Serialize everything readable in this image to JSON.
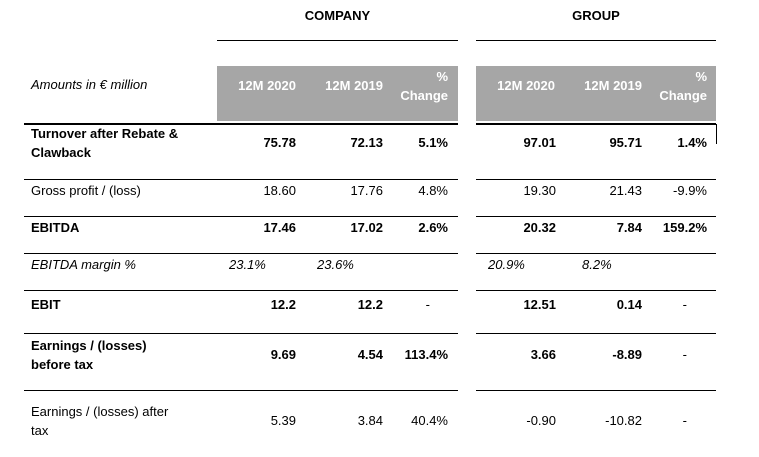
{
  "groups": [
    {
      "title": "COMPANY",
      "cols": [
        "12M 2020",
        "12M 2019",
        "%",
        "Change"
      ]
    },
    {
      "title": "GROUP",
      "cols": [
        "12M 2020",
        "12M 2019",
        "%",
        "Change"
      ]
    }
  ],
  "amounts_label": "Amounts in € million",
  "rows": [
    {
      "label": [
        "Turnover after Rebate &",
        "Clawback"
      ],
      "style": "bold",
      "company": [
        "75.78",
        "72.13",
        "5.1%"
      ],
      "group": [
        "97.01",
        "95.71",
        "1.4%"
      ]
    },
    {
      "label": [
        "Gross profit / (loss)"
      ],
      "style": "normal",
      "company": [
        "18.60",
        "17.76",
        "4.8%"
      ],
      "group": [
        "19.30",
        "21.43",
        "-9.9%"
      ]
    },
    {
      "label": [
        "EBITDA"
      ],
      "style": "bold",
      "company": [
        "17.46",
        "17.02",
        "2.6%"
      ],
      "group": [
        "20.32",
        "7.84",
        "159.2%"
      ]
    },
    {
      "label": [
        "EBITDA margin %"
      ],
      "style": "italic",
      "company": [
        "23.1%",
        "23.6%",
        ""
      ],
      "group": [
        "20.9%",
        "8.2%",
        ""
      ]
    },
    {
      "label": [
        "EBIT"
      ],
      "style": "bold",
      "company": [
        "12.2",
        "12.2",
        "-"
      ],
      "group": [
        "12.51",
        "0.14",
        "-"
      ]
    },
    {
      "label": [
        "Earnings / (losses)",
        "before tax"
      ],
      "style": "bold",
      "company": [
        "9.69",
        "4.54",
        "113.4%"
      ],
      "group": [
        "3.66",
        "-8.89",
        "-"
      ]
    },
    {
      "label": [
        "Earnings / (losses) after",
        "tax"
      ],
      "style": "normal",
      "company": [
        "5.39",
        "3.84",
        "40.4%"
      ],
      "group": [
        "-0.90",
        "-10.82",
        "-"
      ]
    }
  ]
}
